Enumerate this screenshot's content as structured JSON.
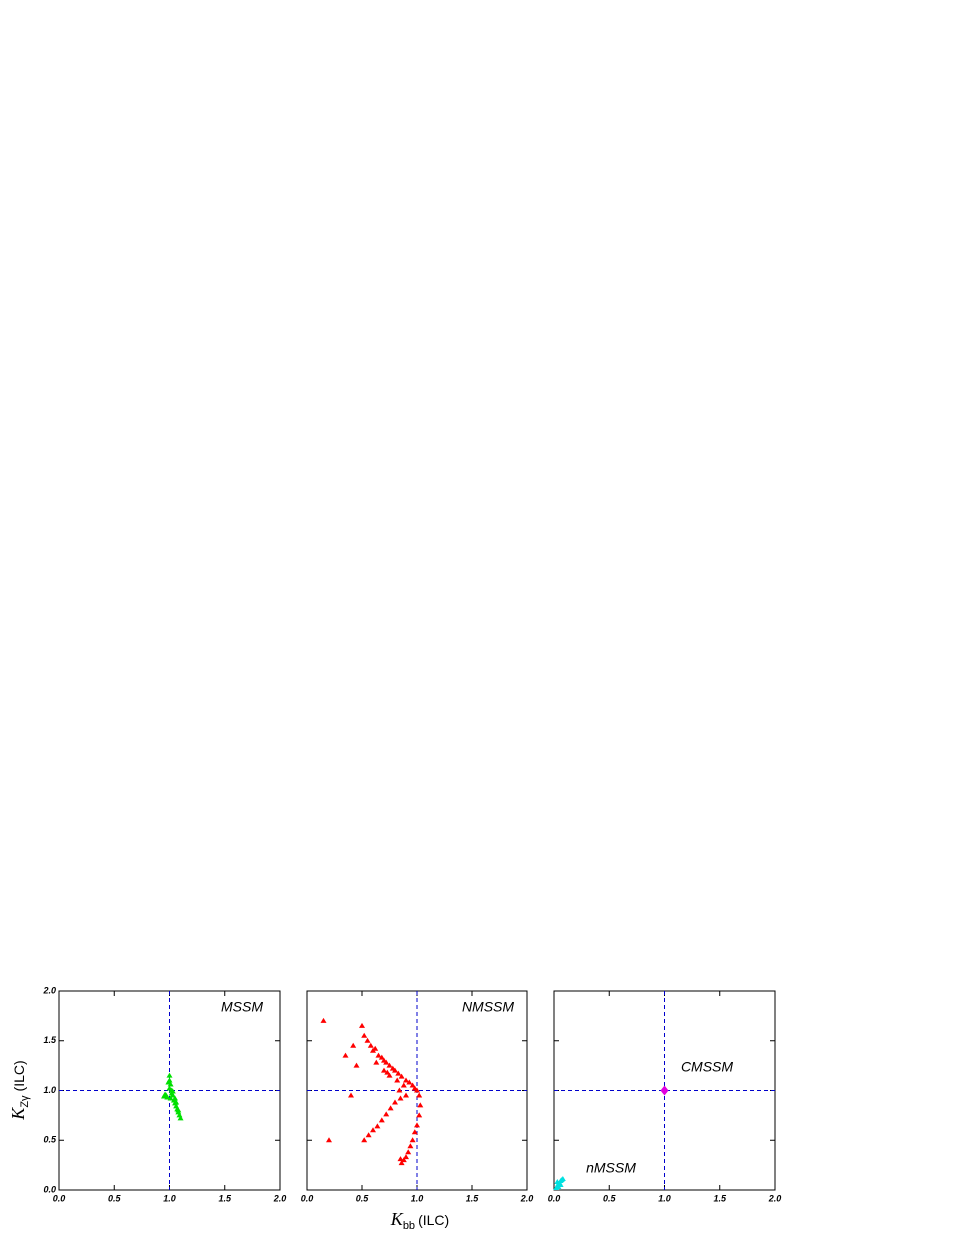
{
  "axis_labels": {
    "x": {
      "symbol": "K",
      "subscript": "bb",
      "unit": "(ILC)"
    },
    "y": {
      "symbol": "K",
      "subscript": "Zγ",
      "unit": "(ILC)"
    }
  },
  "chart_data": [
    {
      "type": "scatter",
      "xlim": [
        0,
        2
      ],
      "ylim": [
        0,
        2
      ],
      "xticks": [
        {
          "value": 0,
          "label": "0.0"
        },
        {
          "value": 0.5,
          "label": "0.5"
        },
        {
          "value": 1,
          "label": "1.0"
        },
        {
          "value": 1.5,
          "label": "1.5"
        },
        {
          "value": 2,
          "label": "2.0"
        }
      ],
      "yticks": [
        {
          "value": 0,
          "label": "0.0"
        },
        {
          "value": 0.5,
          "label": "0.5"
        },
        {
          "value": 1,
          "label": "1.0"
        },
        {
          "value": 1.5,
          "label": "1.5"
        },
        {
          "value": 2,
          "label": "2.0"
        }
      ],
      "reference_lines": {
        "x": 1,
        "y": 1
      },
      "series": [
        {
          "name": "MSSM",
          "color": "#00e000",
          "marker": "triangle",
          "x": [
            1.0,
            1.0,
            1.01,
            1.0,
            1.02,
            0.97,
            0.95,
            0.98,
            1.03,
            1.04,
            1.05,
            1.06,
            1.07,
            1.08,
            1.09,
            1.1,
            1.02,
            1.05,
            1.01,
            0.99,
            1.03,
            1.06,
            1.08,
            0.96
          ],
          "y": [
            1.15,
            1.1,
            1.06,
            1.02,
            1.0,
            0.95,
            0.94,
            0.93,
            0.95,
            0.9,
            0.87,
            0.84,
            0.81,
            0.78,
            0.75,
            0.72,
            0.97,
            0.92,
            0.92,
            1.08,
            0.99,
            0.88,
            0.8,
            0.96
          ]
        }
      ]
    },
    {
      "type": "scatter",
      "xlim": [
        0,
        2
      ],
      "ylim": [
        0,
        2
      ],
      "xticks": [
        {
          "value": 0,
          "label": "0.0"
        },
        {
          "value": 0.5,
          "label": "0.5"
        },
        {
          "value": 1,
          "label": "1.0"
        },
        {
          "value": 1.5,
          "label": "1.5"
        },
        {
          "value": 2,
          "label": "2.0"
        }
      ],
      "yticks": [
        0,
        0.5,
        1,
        1.5,
        2
      ],
      "reference_lines": {
        "x": 1,
        "y": 1
      },
      "series": [
        {
          "name": "NMSSM",
          "color": "#ff0000",
          "marker": "triangle",
          "x": [
            0.15,
            0.2,
            0.4,
            0.42,
            0.5,
            0.52,
            0.55,
            0.58,
            0.6,
            0.62,
            0.65,
            0.68,
            0.7,
            0.72,
            0.75,
            0.78,
            0.8,
            0.83,
            0.86,
            0.9,
            0.93,
            0.96,
            0.98,
            1.0,
            1.02,
            1.03,
            1.02,
            1.0,
            0.98,
            0.96,
            0.94,
            0.92,
            0.9,
            0.88,
            0.86,
            0.85,
            0.9,
            0.85,
            0.8,
            0.76,
            0.72,
            0.68,
            0.64,
            0.6,
            0.56,
            0.52,
            0.7,
            0.75,
            0.82,
            0.88,
            0.35,
            0.45,
            0.63,
            0.73,
            0.84
          ],
          "y": [
            1.7,
            0.5,
            0.95,
            1.45,
            1.65,
            1.55,
            1.5,
            1.45,
            1.4,
            1.42,
            1.35,
            1.33,
            1.3,
            1.28,
            1.25,
            1.22,
            1.2,
            1.17,
            1.14,
            1.1,
            1.08,
            1.05,
            1.02,
            1.0,
            0.95,
            0.85,
            0.75,
            0.65,
            0.58,
            0.5,
            0.44,
            0.38,
            0.33,
            0.3,
            0.27,
            0.31,
            0.95,
            0.92,
            0.88,
            0.82,
            0.76,
            0.7,
            0.64,
            0.6,
            0.55,
            0.5,
            1.2,
            1.15,
            1.1,
            1.05,
            1.35,
            1.25,
            1.28,
            1.18,
            1.0
          ]
        }
      ]
    },
    {
      "type": "scatter",
      "xlim": [
        0,
        2
      ],
      "ylim": [
        0,
        2
      ],
      "xticks": [
        {
          "value": 0,
          "label": "0.0"
        },
        {
          "value": 0.5,
          "label": "0.5"
        },
        {
          "value": 1,
          "label": "1.0"
        },
        {
          "value": 1.5,
          "label": "1.5"
        },
        {
          "value": 2,
          "label": "2.0"
        }
      ],
      "yticks": [
        0,
        0.5,
        1,
        1.5,
        2
      ],
      "reference_lines": {
        "x": 1,
        "y": 1
      },
      "series": [
        {
          "name": "CMSSM",
          "color": "#e000e0",
          "marker": "diamond",
          "x": [
            1.0
          ],
          "y": [
            1.0
          ]
        },
        {
          "name": "nMSSM",
          "color": "#00e0e0",
          "marker": "triangle",
          "x": [
            0.02,
            0.03,
            0.04,
            0.05,
            0.06,
            0.07,
            0.08,
            0.04,
            0.06,
            0.03
          ],
          "y": [
            0.02,
            0.04,
            0.06,
            0.07,
            0.09,
            0.1,
            0.11,
            0.03,
            0.05,
            0.08
          ]
        }
      ]
    }
  ]
}
